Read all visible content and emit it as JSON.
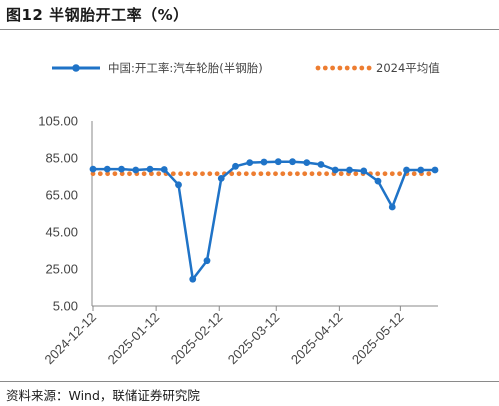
{
  "header": {
    "title": "图12 半钢胎开工率（%）"
  },
  "footer": {
    "source": "资料来源：Wind，联储证券研究院"
  },
  "colors": {
    "series_line": "#1f73c7",
    "average_line": "#ed7d31",
    "axis": "#888888"
  },
  "chart_data": {
    "type": "line",
    "title": "图12 半钢胎开工率（%）",
    "xlabel": "",
    "ylabel": "",
    "ylim": [
      5,
      105
    ],
    "yticks": [
      "105.00",
      "85.00",
      "65.00",
      "45.00",
      "25.00",
      "5.00"
    ],
    "xticks": [
      {
        "label": "2024-12-12",
        "index": 0
      },
      {
        "label": "2025-01-12",
        "index": 4.43
      },
      {
        "label": "2025-02-12",
        "index": 8.86
      },
      {
        "label": "2025-03-12",
        "index": 12.86
      },
      {
        "label": "2025-04-12",
        "index": 17.29
      },
      {
        "label": "2025-05-12",
        "index": 21.57
      }
    ],
    "grid": false,
    "legend": "top",
    "series": [
      {
        "name": "中国:开工率:汽车轮胎(半钢胎)",
        "style": "line-with-markers",
        "values": [
          79.0,
          79.0,
          79.0,
          78.5,
          79.0,
          78.8,
          70.5,
          19.5,
          29.5,
          74.0,
          80.5,
          82.5,
          82.8,
          83.0,
          83.0,
          82.5,
          81.5,
          78.5,
          78.5,
          78.0,
          72.5,
          58.5,
          78.5,
          78.5,
          78.5
        ]
      },
      {
        "name": "2024平均值",
        "style": "dotted",
        "values": [
          76.5,
          76.5,
          76.5,
          76.5,
          76.5,
          76.5,
          76.5,
          76.5,
          76.5,
          76.5,
          76.5,
          76.5,
          76.5,
          76.5,
          76.5,
          76.5,
          76.5,
          76.5,
          76.5,
          76.5,
          76.5,
          76.5,
          76.5,
          76.5,
          76.5
        ]
      }
    ]
  }
}
